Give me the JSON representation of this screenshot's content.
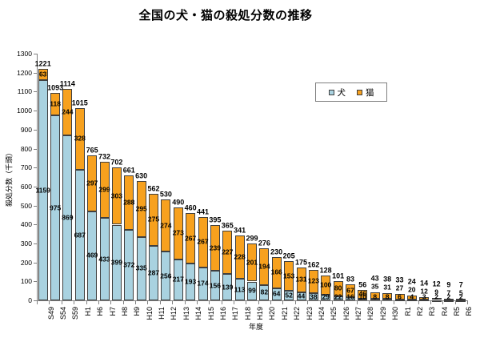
{
  "title": "全国の犬・猫の殺処分数の推移",
  "legend": {
    "dog_label": "犬",
    "cat_label": "猫"
  },
  "colors": {
    "dog_fill": "#A9D2E0",
    "cat_fill": "#F7A11E",
    "segment_border": "#3F3F3F",
    "axis": "#808080",
    "text": "#000000"
  },
  "chart_data": {
    "type": "bar",
    "stacked": true,
    "title": "全国の犬・猫の殺処分数の推移",
    "xlabel": "年度",
    "ylabel": "殺処分数（千頭）",
    "ylim": [
      0,
      1300
    ],
    "ytick_step": 100,
    "gridlines": false,
    "legend_position": "inside-top-right",
    "categories": [
      "S49",
      "S54",
      "S59",
      "H1",
      "H6",
      "H7",
      "H8",
      "H9",
      "H10",
      "H11",
      "H12",
      "H13",
      "H14",
      "H15",
      "H16",
      "H17",
      "H18",
      "H19",
      "H20",
      "H21",
      "H22",
      "H23",
      "H24",
      "H25",
      "H26",
      "H27",
      "H28",
      "H29",
      "H30",
      "R1",
      "R2",
      "R3",
      "R4",
      "R5",
      "R6"
    ],
    "series": [
      {
        "name": "犬",
        "color": "#A9D2E0",
        "values": [
          1159,
          975,
          869,
          687,
          469,
          433,
          399,
          372,
          335,
          287,
          256,
          217,
          193,
          174,
          156,
          139,
          113,
          99,
          82,
          64,
          52,
          44,
          38,
          29,
          22,
          16,
          10,
          8,
          8,
          6,
          4,
          3,
          2,
          2,
          2
        ]
      },
      {
        "name": "猫",
        "color": "#F7A11E",
        "values": [
          63,
          118,
          244,
          328,
          297,
          299,
          303,
          288,
          295,
          275,
          274,
          273,
          267,
          267,
          239,
          227,
          228,
          201,
          194,
          166,
          153,
          131,
          123,
          100,
          80,
          67,
          46,
          35,
          31,
          27,
          20,
          12,
          9,
          7,
          5
        ]
      }
    ],
    "totals": [
      1221,
      1093,
      1114,
      1015,
      765,
      732,
      702,
      661,
      630,
      562,
      530,
      490,
      460,
      441,
      395,
      365,
      341,
      299,
      276,
      230,
      205,
      175,
      162,
      128,
      101,
      83,
      56,
      43,
      38,
      33,
      24,
      14,
      12,
      9,
      7
    ]
  }
}
